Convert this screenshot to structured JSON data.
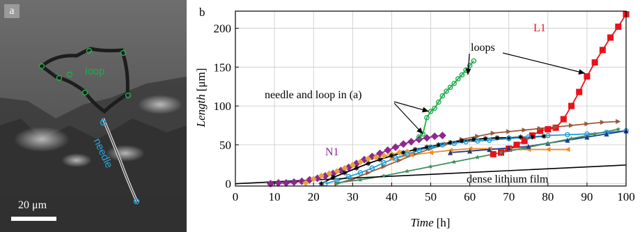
{
  "panel_a": {
    "label": "a",
    "loop_label": "loop",
    "needle_label": "needle",
    "scale_label": "20 μm",
    "loop_color": "#1fae4b",
    "needle_color": "#29a8e0"
  },
  "chart_data": {
    "type": "line",
    "panel_label": "b",
    "xlabel": "Time",
    "xunit": "[h]",
    "ylabel": "Length",
    "yunit": "[μm]",
    "xlim": [
      0,
      100
    ],
    "ylim": [
      -3,
      222
    ],
    "xticks": [
      0,
      10,
      20,
      30,
      40,
      50,
      60,
      70,
      80,
      90,
      100
    ],
    "yticks": [
      0,
      50,
      100,
      150,
      200
    ],
    "grid": true,
    "annotations": {
      "loops": "loops",
      "needle_loop": "needle and loop in (a)",
      "dense_film": "dense lithium film",
      "N1": "N1",
      "L1": "L1"
    },
    "series": [
      {
        "label": "L1",
        "color": "#e8121b",
        "marker": "square",
        "x": [
          66,
          68,
          70,
          72,
          74,
          76,
          78,
          80,
          82,
          84,
          86,
          88,
          90,
          92,
          94,
          96,
          98,
          100
        ],
        "y": [
          38,
          40,
          45,
          50,
          55,
          62,
          68,
          70,
          72,
          83,
          100,
          118,
          138,
          156,
          172,
          188,
          202,
          218
        ]
      },
      {
        "label": "N1",
        "color": "#8e278f",
        "marker": "diamond",
        "x": [
          9,
          11,
          13,
          15,
          17,
          19,
          21,
          23,
          25,
          27,
          29,
          31,
          33,
          35,
          37,
          39,
          41,
          43,
          45,
          47,
          49,
          51,
          53
        ],
        "y": [
          0,
          1,
          1,
          2,
          3,
          5,
          7,
          10,
          13,
          17,
          21,
          26,
          31,
          35,
          39,
          43,
          47,
          51,
          54,
          57,
          59,
          61,
          62
        ]
      },
      {
        "color": "#1fae4b",
        "marker": "circle",
        "x": [
          47,
          48,
          49,
          50,
          51,
          52,
          53,
          54,
          55,
          56,
          57,
          58,
          59,
          60,
          61
        ],
        "y": [
          60,
          64,
          85,
          93,
          97,
          105,
          113,
          119,
          124,
          129,
          135,
          140,
          146,
          152,
          158
        ]
      },
      {
        "color": "#9a5a3c",
        "marker": "triangle-right",
        "x": [
          26,
          30,
          34,
          38,
          42,
          46,
          50,
          54,
          58,
          62,
          66,
          70,
          74,
          78,
          82,
          86,
          90,
          94,
          98
        ],
        "y": [
          0,
          6,
          14,
          22,
          30,
          38,
          45,
          51,
          57,
          61,
          65,
          67,
          69,
          71,
          73,
          75,
          77,
          79,
          80
        ]
      },
      {
        "color": "#f08a1c",
        "marker": "triangle-left",
        "x": [
          40,
          45,
          50,
          55,
          60,
          65,
          70,
          75,
          80,
          85
        ],
        "y": [
          32,
          37,
          40,
          43,
          45,
          45,
          44,
          44,
          44,
          44
        ]
      },
      {
        "color": "#e8a33a",
        "marker": "diamond",
        "x": [
          18,
          20,
          22,
          24,
          26,
          28,
          30,
          32,
          34,
          36,
          38,
          40,
          42,
          44
        ],
        "y": [
          1,
          6,
          10,
          13,
          16,
          20,
          24,
          28,
          32,
          34,
          36,
          38,
          40,
          41
        ]
      },
      {
        "color": "#000000",
        "marker": "asterisk",
        "x": [
          22,
          25,
          28,
          31,
          34,
          37,
          40,
          43,
          46,
          49,
          52,
          55,
          58,
          61,
          64,
          67,
          70,
          73,
          76,
          79
        ],
        "y": [
          0,
          8,
          14,
          20,
          26,
          31,
          36,
          40,
          44,
          47,
          50,
          53,
          55,
          57,
          58,
          59,
          59,
          60,
          60,
          61
        ]
      },
      {
        "color": "#1a9fd9",
        "marker": "circle",
        "x": [
          23,
          26,
          29,
          32,
          35,
          38,
          41,
          44,
          47,
          50,
          53,
          56,
          59,
          62,
          65,
          70,
          75,
          80,
          85,
          90,
          95,
          100
        ],
        "y": [
          0,
          4,
          9,
          14,
          20,
          27,
          33,
          38,
          43,
          47,
          50,
          52,
          54,
          55,
          56,
          58,
          60,
          62,
          63,
          64,
          66,
          68
        ]
      },
      {
        "color": "#1f3a8a",
        "marker": "triangle",
        "x": [
          55,
          60,
          65,
          70,
          75,
          80,
          85,
          90,
          95,
          100
        ],
        "y": [
          40,
          42,
          44,
          46,
          48,
          52,
          56,
          60,
          64,
          68
        ]
      },
      {
        "color": "#3f8f5e",
        "marker": "star",
        "x": [
          26,
          32,
          38,
          44,
          50,
          56,
          62,
          68,
          74,
          80,
          86,
          92,
          98
        ],
        "y": [
          1,
          5,
          10,
          16,
          22,
          28,
          34,
          40,
          46,
          52,
          58,
          64,
          70
        ]
      },
      {
        "label": "dense lithium film",
        "color": "#000000",
        "marker": "none",
        "x": [
          0,
          100
        ],
        "y": [
          0,
          24
        ]
      }
    ]
  }
}
